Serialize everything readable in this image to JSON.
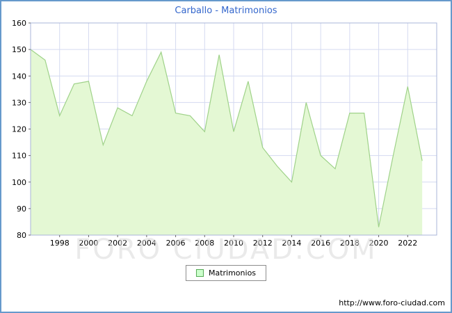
{
  "chart_data": {
    "type": "area",
    "title": "Carballo - Matrimonios",
    "legend": "Matrimonios",
    "xlabel": "",
    "ylabel": "",
    "x": [
      1996,
      1997,
      1998,
      1999,
      2000,
      2001,
      2002,
      2003,
      2004,
      2005,
      2006,
      2007,
      2008,
      2009,
      2010,
      2011,
      2012,
      2013,
      2014,
      2015,
      2016,
      2017,
      2018,
      2019,
      2020,
      2021,
      2022,
      2023
    ],
    "values": [
      150,
      146,
      125,
      137,
      138,
      114,
      128,
      125,
      138,
      149,
      126,
      125,
      119,
      148,
      119,
      138,
      113,
      106,
      100,
      130,
      110,
      105,
      126,
      126,
      83,
      110,
      136,
      108
    ],
    "ylim": [
      80,
      160
    ],
    "ytick_step": 10,
    "xticks": [
      1998,
      2000,
      2002,
      2004,
      2006,
      2008,
      2010,
      2012,
      2014,
      2016,
      2018,
      2020,
      2022
    ],
    "grid": true,
    "legend_position": "bottom",
    "colors": {
      "area_fill": "#e4f8d4",
      "line": "#9fd289",
      "grid": "#d4daf0",
      "axis_border": "#a9b4d8",
      "title": "#3366cc",
      "frame_border": "#6699cc",
      "tick_text": "#000000",
      "legend_swatch_fill": "#ccffcc",
      "legend_swatch_border": "#55aa55"
    }
  },
  "watermark": "FORO CIUDAD.COM",
  "source_url": "http://www.foro-ciudad.com"
}
